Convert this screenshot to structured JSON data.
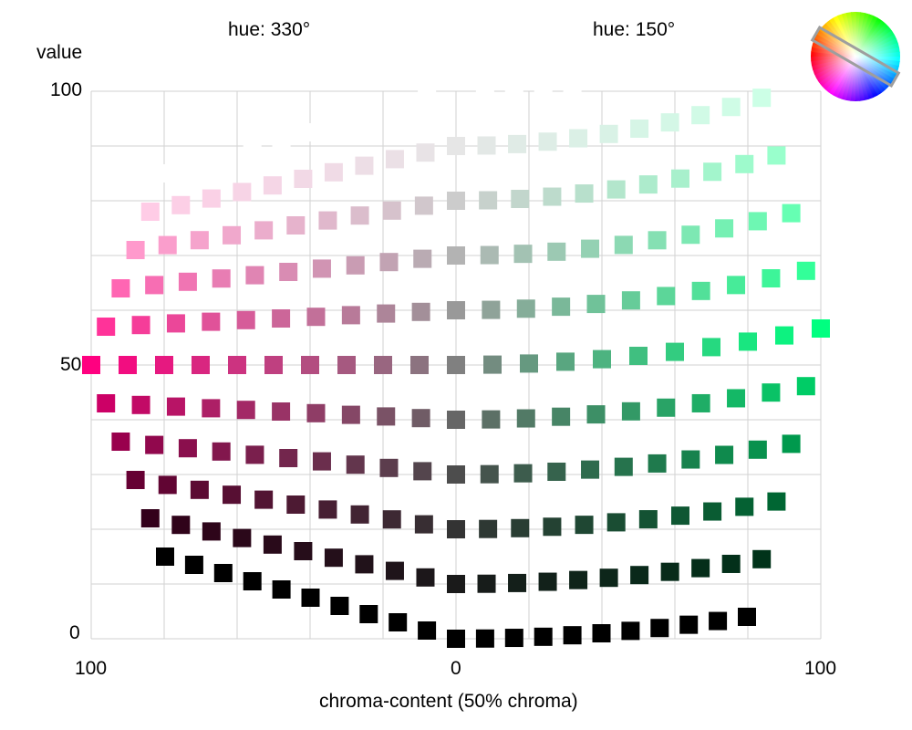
{
  "chart_data": {
    "type": "scatter",
    "ylabel": "value",
    "xlabel": "chroma-content (50% chroma)",
    "x_tick_labels": [
      "100",
      "0",
      "100"
    ],
    "y_tick_labels": [
      "100",
      "50",
      "0"
    ],
    "ylim": [
      0,
      100
    ],
    "xlim": [
      -100,
      100
    ],
    "grid": true,
    "hue_labels": {
      "left": "hue: 330°",
      "right": "hue: 150°"
    },
    "hues": {
      "left": 330,
      "right": 150
    },
    "rows": [
      {
        "value": 100,
        "steps": 10
      },
      {
        "value": 90,
        "steps": 10
      },
      {
        "value": 80,
        "steps": 10
      },
      {
        "value": 70,
        "steps": 10
      },
      {
        "value": 60,
        "steps": 10
      },
      {
        "value": 50,
        "steps": 10
      },
      {
        "value": 40,
        "steps": 10
      },
      {
        "value": 30,
        "steps": 10
      },
      {
        "value": 20,
        "steps": 10
      },
      {
        "value": 10,
        "steps": 10
      },
      {
        "value": 0,
        "steps": 10
      }
    ],
    "legend": "hue wheel, top-right"
  }
}
